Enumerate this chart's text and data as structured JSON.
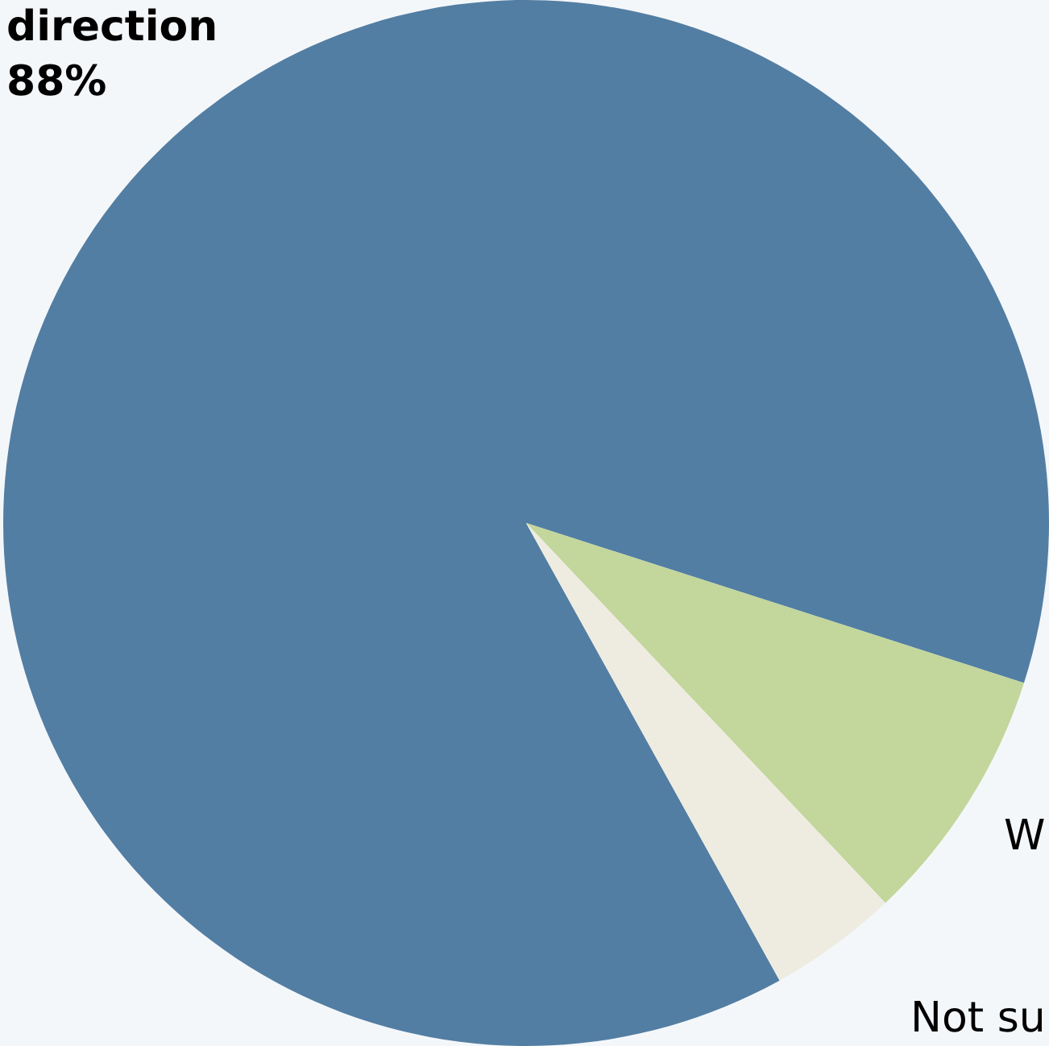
{
  "chart_data": {
    "type": "pie",
    "categories": [
      "direction",
      "W",
      "Not su"
    ],
    "values": [
      88,
      8,
      4
    ],
    "colors": [
      "#537ea3",
      "#c3d69b",
      "#eeece1"
    ],
    "value_labels": [
      "88%",
      null,
      null
    ]
  }
}
